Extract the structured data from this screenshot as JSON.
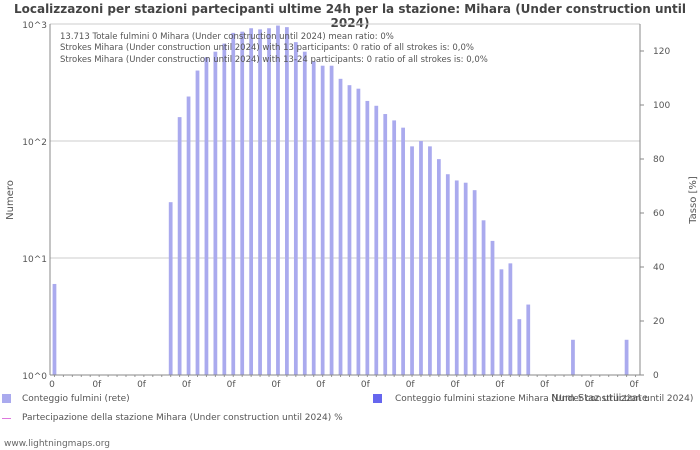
{
  "title": "Localizzazoni per stazioni partecipanti ultime 24h per la stazione: Mihara (Under construction until 2024)",
  "info": {
    "line1": "13.713 Totale fulmini      0 Mihara (Under construction until 2024)      mean ratio: 0%",
    "line2": "Strokes Mihara (Under construction until 2024) with 13 participants: 0      ratio of all strokes is: 0,0%",
    "line3": "Strokes Mihara (Under construction until 2024) with 13-24 participants: 0      ratio of all strokes is: 0,0%"
  },
  "legend": {
    "rete": "Conteggio fulmini (rete)",
    "stazione": "Conteggio fulmini stazione Mihara (Under construction until 2024)",
    "partecipazione": "Partecipazione della stazione Mihara (Under construction until 2024) %"
  },
  "footer": "www.lightningmaps.org",
  "colors": {
    "rete": "#aaaaee",
    "stazione": "#6666ee",
    "partecipazione": "#dd77dd",
    "grid": "#cccccc"
  },
  "chart_data": {
    "type": "bar",
    "title": "Localizzazoni per stazioni partecipanti ultime 24h per la stazione: Mihara (Under construction until 2024)",
    "xlabel": "Num Staz utilizzate",
    "ylabel": "Numero",
    "y2label": "Tasso [%]",
    "yscale": "log",
    "ylim": [
      1,
      1000
    ],
    "y_ticks": [
      "10^0",
      "10^1",
      "10^2",
      "10^3"
    ],
    "y2lim": [
      0,
      130
    ],
    "y2_ticks": [
      "0",
      "20",
      "40",
      "60",
      "80",
      "100",
      "120"
    ],
    "x_ticks": [
      "0",
      "0f",
      "0f",
      "0f",
      "0f",
      "0f",
      "0f",
      "0f",
      "0f",
      "0f",
      "0f",
      "0f",
      "0f",
      "0f"
    ],
    "series": [
      {
        "name": "Conteggio fulmini (rete)",
        "values": [
          6,
          0,
          0,
          0,
          0,
          0,
          0,
          0,
          0,
          0,
          0,
          0,
          0,
          30,
          160,
          240,
          400,
          520,
          580,
          680,
          840,
          860,
          920,
          900,
          920,
          970,
          940,
          700,
          580,
          480,
          440,
          440,
          340,
          300,
          280,
          220,
          200,
          170,
          150,
          130,
          90,
          100,
          90,
          70,
          52,
          46,
          44,
          38,
          21,
          14,
          8,
          9,
          3,
          4,
          1,
          1,
          1,
          0,
          2,
          0,
          1,
          0,
          1,
          0,
          2,
          0
        ]
      },
      {
        "name": "Conteggio fulmini stazione Mihara (Under construction until 2024)",
        "values": []
      },
      {
        "name": "Partecipazione della stazione Mihara (Under construction until 2024) %",
        "values": []
      }
    ]
  }
}
